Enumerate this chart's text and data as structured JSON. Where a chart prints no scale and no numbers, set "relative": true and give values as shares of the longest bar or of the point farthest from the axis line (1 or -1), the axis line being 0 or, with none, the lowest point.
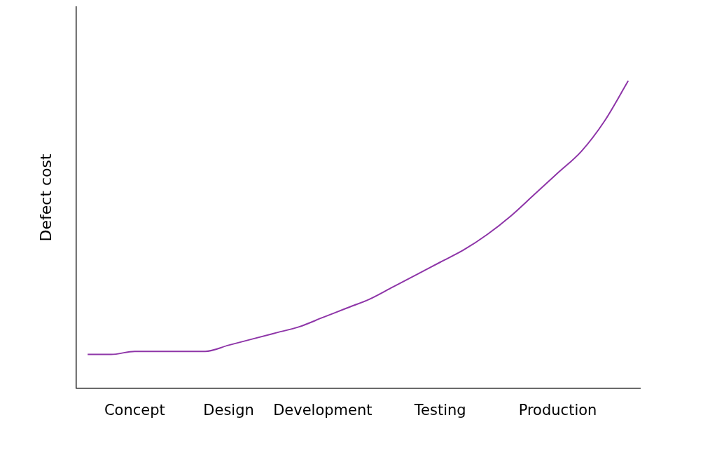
{
  "chart_data": {
    "type": "line",
    "relative": true,
    "ylabel": "Defect cost",
    "categories": [
      null,
      null,
      "Concept",
      null,
      null,
      null,
      "Design",
      null,
      null,
      null,
      "Development",
      null,
      null,
      null,
      null,
      "Testing",
      null,
      null,
      null,
      null,
      "Production",
      null,
      null,
      null
    ],
    "series": [
      {
        "color": "#8e35a8",
        "values": [
          0.11,
          0.11,
          0.12,
          0.12,
          0.12,
          0.12,
          0.14,
          0.16,
          0.18,
          0.2,
          0.23,
          0.26,
          0.29,
          0.33,
          0.37,
          0.41,
          0.45,
          0.5,
          0.56,
          0.63,
          0.7,
          0.77,
          0.87,
          1
        ]
      }
    ],
    "grid": false,
    "legend": false,
    "marker": "none",
    "line_style": "solid"
  }
}
